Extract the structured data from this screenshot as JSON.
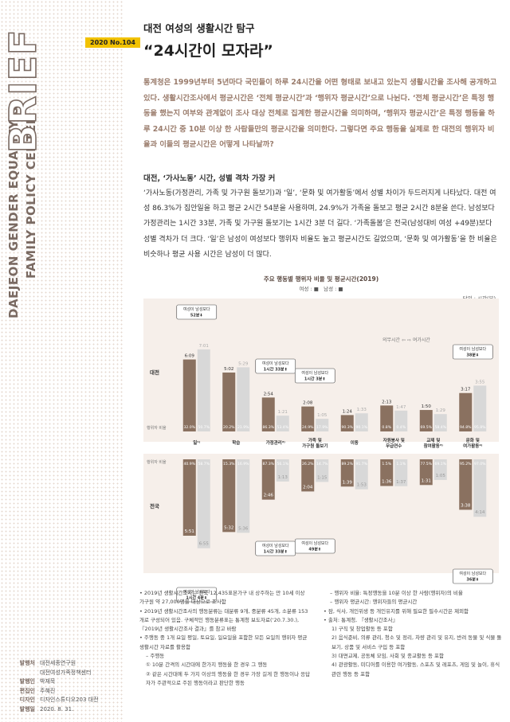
{
  "sidebar": {
    "brief": "BRIEF",
    "line1": "DAEJEON GENDER EQUALITY &",
    "line2": "FAMILY POLICY CENTER",
    "colophon": [
      {
        "k": "발행처",
        "v": "대전세종연구원"
      },
      {
        "k": "",
        "v": "대전여성가족정책센터"
      },
      {
        "k": "발행인",
        "v": "박재묵"
      },
      {
        "k": "편집인",
        "v": "주혜진"
      },
      {
        "k": "디자인",
        "v": "디자인스튜디오203 대전"
      },
      {
        "k": "발행일",
        "v": "2020. 8. 31."
      }
    ]
  },
  "header": {
    "issue": "2020 No.104",
    "subtitle": "대전 여성의 생활시간 탐구",
    "title": "“24시간이 모자라”"
  },
  "lead": "통계청은 1999년부터 5년마다 국민들이 하루 24시간을 어떤 형태로 보내고 있는지 생활시간을 조사해 공개하고 있다. 생활시간조사에서 평균시간은 ‘전체 평균시간’과 ‘행위자 평균시간’으로 나뉜다. ‘전체 평균시간’은 특정 행동을 했는지 여부와 관계없이 조사 대상 전체로 집계한 평균시간을 의미하며, ‘행위자 평균시간’은 특정 행동을 하루 24시간 중 10분 이상 한 사람들만의 평균시간을 의미한다. 그렇다면 주요 행동을 실제로 한 대전의 행위자 비율과 이들의 평균시간은 어떻게 나타날까?",
  "section": {
    "title": "대전, ‘가사노동’ 시간, 성별 격차 가장 커",
    "body": "‘가사노동(가정관리, 가족 및 가구원 돌보기)과 ‘일’, ‘문화 및 여가활동’에서 성별 차이가 두드러지게 나타났다. 대전 여성 86.3%가 집안일을 하고 평균 2시간 54분을 사용하며, 24.9%가 가족을 돌보고 평균 2시간 8분을 쓴다. 남성보다 가정관리는 1시간 33분, 가족 및 가구원 돌보기는 1시간 3분 더 길다. ‘가족돌봄’은 전국(남성대비 여성 +49분)보다 성별 격차가 더 크다. ‘일’은 남성이 여성보다 행위자 비율도 높고 평균시간도 길었으며, ‘문화 및 여가활동’을 한 비율은 비슷하나 평균 사용 시간은 남성이 더 많다."
  },
  "chart_data": {
    "type": "bar",
    "title": "주요 행동별 행위자 비율 및 평균시간(2019)",
    "legend": {
      "female": "여성 : ■",
      "male": "남성 : ■"
    },
    "unit": "단위 : 시간(분)",
    "colors": {
      "female": "#8a7160",
      "male": "#d8d8d8"
    },
    "row_labels": {
      "daejeon": "대전",
      "national": "전국",
      "ratio": "행위자 비율"
    },
    "flow_label": "의무시간 ⇦ ⇨ 여가시간",
    "categories": [
      "일¹⁾",
      "학습",
      "가정관리²⁾",
      "가족 및\n가구원 돌보기",
      "이동",
      "자원봉사 및\n무급연수",
      "교제 및\n참여활동³⁾",
      "문화 및\n여가활동⁴⁾"
    ],
    "daejeon": {
      "female_time": [
        "6:09",
        "5:02",
        "2:54",
        "2:08",
        "1:24",
        "2:13",
        "1:50",
        "3:17"
      ],
      "male_time": [
        "7:01",
        "5:29",
        "1:21",
        "1:05",
        "1:33",
        "1:47",
        "1:29",
        "3:55"
      ],
      "female_ratio": [
        "32.0%",
        "20.2%",
        "86.3%",
        "24.9%",
        "90.3%",
        "0.8%",
        "69.5%",
        "94.8%"
      ],
      "male_ratio": [
        "50.7%",
        "21.9%",
        "53.4%",
        "17.9%",
        "90.1%",
        "0.4%",
        "58.4%",
        "95.8%"
      ]
    },
    "national": {
      "female_time": [
        "5:51",
        "5:32",
        "2:46",
        "2:04",
        "1:39",
        "1:36",
        "1:31",
        "3:38"
      ],
      "male_time": [
        "6:55",
        "5:36",
        "1:13",
        "1:15",
        "1:53",
        "1:37",
        "1:05",
        "4:14"
      ],
      "female_ratio": [
        "40.9%",
        "15.3%",
        "87.3%",
        "26.2%",
        "89.2%",
        "1.5%",
        "77.5%",
        "95.2%"
      ],
      "male_ratio": [
        "58.7%",
        "16.9%",
        "56.1%",
        "14.7%",
        "91.7%",
        "1.1%",
        "69.1%",
        "97.0%"
      ]
    },
    "callouts": {
      "dj_work": [
        "여성이 남성보다",
        "52분⬇"
      ],
      "dj_house": [
        "여성이 남성보다",
        "1시간 33분⬆"
      ],
      "dj_care": [
        "여성이 남성보다",
        "1시간 3분⬆"
      ],
      "dj_leisure": [
        "여성이 남성보다",
        "38분⬇"
      ],
      "nt_work": [
        "여성이 남성보다",
        "1시간 4분⬇"
      ],
      "nt_house": [
        "여성이 남성보다",
        "1시간 33분⬆"
      ],
      "nt_care": [
        "여성이 남성보다",
        "49분⬆"
      ],
      "nt_leisure": [
        "여성이 남성보다",
        "36분⬇"
      ]
    }
  },
  "notes_left": [
    "• 2019년 생활시간조사는 전국 12,435표본가구 내 상주하는 만 10세 이상 가구원 약 27,000명을 대상으로 조사함",
    "• 2019년 생활시간조사의 행동분류는 대분류 9개, 중분류 45개, 소분류 153개로 구성되어 있음. 구체적인 행동분류표는 통계청 보도자료(‘20.7.30.), 『2019년 생활시간조사 결과』를 참고 바람",
    "• 주행동 중 1개 요일 평일, 토요일, 일요일을 포함한 모든 요일의 행위자 평균 생활시간 자료를 활용함",
    "– 주행동",
    "① 10분 간격의 시간대에 한가지 행동을 한 경우 그 행동",
    "② 같은 시간대에 두 가지 이상의 행동을 한 경우 가장 길게 한 행동이나 응답자가 주관적으로 주된 행동이라고 판단한 행동"
  ],
  "notes_right": [
    "– 행위자 비율: 특정행동을 10분 이상 한 사람(행위자)의 비율",
    "– 행위자 평균시간: 행위자들의 평균시간",
    "• 잠, 식사, 개인위생 등 개인유지를 위해 필요한 필수시간은 제외함",
    "• 출처: 통계청, 『생활시간조사』",
    "1) 구직 및 창업활동 등 포함",
    "2) 음식준비, 의류 관리, 청소 및 정리, 차량 관리 및 유지, 반려 동물 및 식물 돌보기, 상품 및 서비스 구입 등 포함",
    "3) 대면교제, 공동체 모임, 사회 및 종교활동 등 포함",
    "4) 관광활동, 미디어를 이용한 여가활동, 스포츠 및 레포츠, 게임 및 놀이, 휴식 관련 행동 등 포함"
  ]
}
